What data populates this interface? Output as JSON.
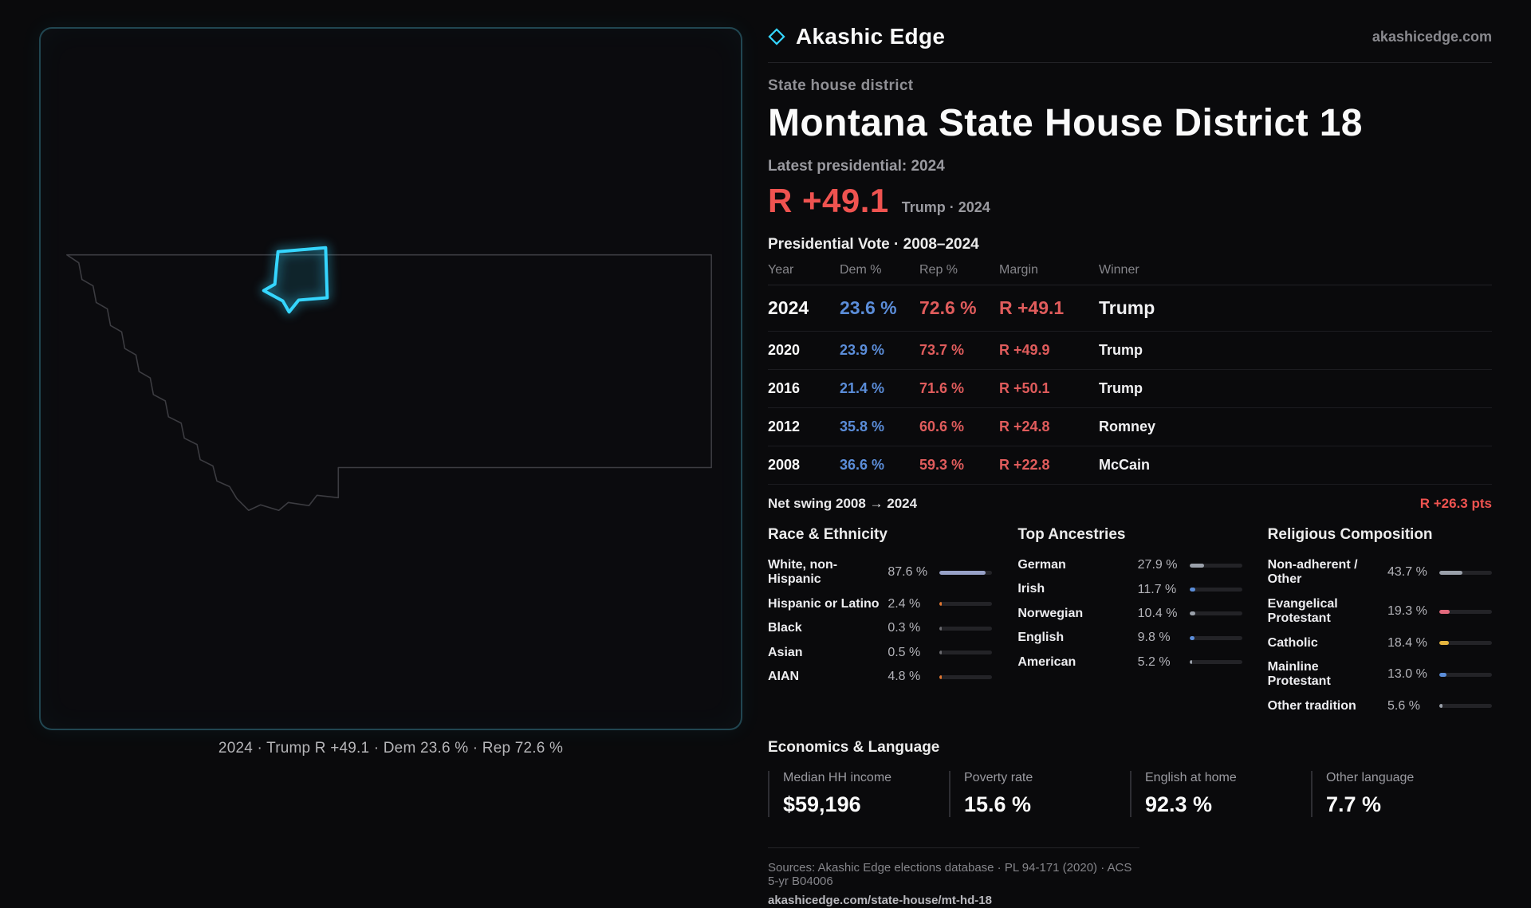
{
  "brand": {
    "name": "Akashic Edge",
    "site": "akashicedge.com",
    "accent": "#35d6ff"
  },
  "map": {
    "caption": "2024 · Trump R +49.1 · Dem 23.6 % · Rep 72.6 %"
  },
  "header": {
    "kicker": "State house district",
    "title": "Montana State House District 18",
    "latest_label": "Latest presidential: 2024"
  },
  "headline": {
    "margin": "R +49.1",
    "context": "Trump · 2024",
    "color": "#ef5350"
  },
  "vote": {
    "title": "Presidential Vote · 2008–2024",
    "columns": [
      "Year",
      "Dem %",
      "Rep %",
      "Margin",
      "Winner"
    ],
    "rows": [
      {
        "year": "2024",
        "dem": "23.6 %",
        "rep": "72.6 %",
        "margin": "R +49.1",
        "winner": "Trump"
      },
      {
        "year": "2020",
        "dem": "23.9 %",
        "rep": "73.7 %",
        "margin": "R +49.9",
        "winner": "Trump"
      },
      {
        "year": "2016",
        "dem": "21.4 %",
        "rep": "71.6 %",
        "margin": "R +50.1",
        "winner": "Trump"
      },
      {
        "year": "2012",
        "dem": "35.8 %",
        "rep": "60.6 %",
        "margin": "R +24.8",
        "winner": "Romney"
      },
      {
        "year": "2008",
        "dem": "36.6 %",
        "rep": "59.3 %",
        "margin": "R +22.8",
        "winner": "McCain"
      }
    ],
    "net_swing_label": "Net swing 2008 → 2024",
    "net_swing_value": "R +26.3 pts",
    "dem_color": "#5b8dd9",
    "rep_color": "#e05c5c"
  },
  "demographics": {
    "race": {
      "title": "Race & Ethnicity",
      "items": [
        {
          "label": "White, non-Hispanic",
          "value": "87.6 %",
          "pct": 87.6,
          "color": "#98a2c8"
        },
        {
          "label": "Hispanic or Latino",
          "value": "2.4 %",
          "pct": 2.4,
          "color": "#e2762f"
        },
        {
          "label": "Black",
          "value": "0.3 %",
          "pct": 0.3,
          "color": "#6b6b70"
        },
        {
          "label": "Asian",
          "value": "0.5 %",
          "pct": 0.5,
          "color": "#6b6b70"
        },
        {
          "label": "AIAN",
          "value": "4.8 %",
          "pct": 4.8,
          "color": "#e2762f"
        }
      ]
    },
    "ancestries": {
      "title": "Top Ancestries",
      "items": [
        {
          "label": "German",
          "value": "27.9 %",
          "pct": 27.9,
          "color": "#9aa0aa"
        },
        {
          "label": "Irish",
          "value": "11.7 %",
          "pct": 11.7,
          "color": "#5b8dd9"
        },
        {
          "label": "Norwegian",
          "value": "10.4 %",
          "pct": 10.4,
          "color": "#9aa0aa"
        },
        {
          "label": "English",
          "value": "9.8 %",
          "pct": 9.8,
          "color": "#5b8dd9"
        },
        {
          "label": "American",
          "value": "5.2 %",
          "pct": 5.2,
          "color": "#9aa0aa"
        }
      ]
    },
    "religion": {
      "title": "Religious Composition",
      "items": [
        {
          "label": "Non-adherent / Other",
          "value": "43.7 %",
          "pct": 43.7,
          "color": "#9aa0aa"
        },
        {
          "label": "Evangelical Protestant",
          "value": "19.3 %",
          "pct": 19.3,
          "color": "#e2697c"
        },
        {
          "label": "Catholic",
          "value": "18.4 %",
          "pct": 18.4,
          "color": "#e5b53f"
        },
        {
          "label": "Mainline Protestant",
          "value": "13.0 %",
          "pct": 13.0,
          "color": "#5b8dd9"
        },
        {
          "label": "Other tradition",
          "value": "5.6 %",
          "pct": 5.6,
          "color": "#9aa0aa"
        }
      ]
    }
  },
  "economics": {
    "title": "Economics & Language",
    "stats": [
      {
        "label": "Median HH income",
        "value": "$59,196"
      },
      {
        "label": "Poverty rate",
        "value": "15.6 %"
      },
      {
        "label": "English at home",
        "value": "92.3 %"
      },
      {
        "label": "Other language",
        "value": "7.7 %"
      }
    ]
  },
  "footer": {
    "sources": "Sources: Akashic Edge elections database · PL 94-171 (2020) · ACS 5-yr B04006",
    "permalink": "akashicedge.com/state-house/mt-hd-18"
  }
}
